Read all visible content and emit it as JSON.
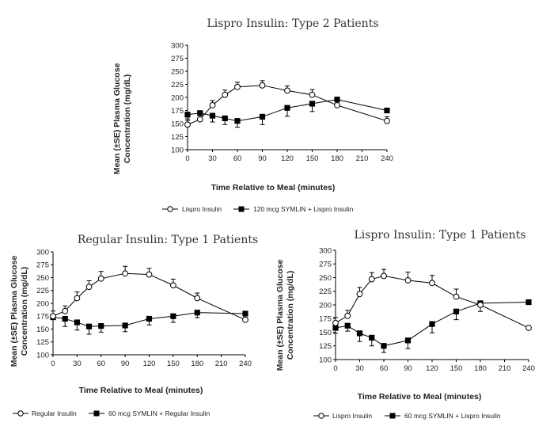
{
  "chart_data": [
    {
      "type": "line",
      "title": "Lispro Insulin:  Type 2 Patients",
      "xlabel": "Time Relative to Meal (minutes)",
      "ylabel_lines": [
        "Mean (±SE) Plasma Glucose",
        "Concentration (mg/dL)"
      ],
      "xlim": [
        0,
        240
      ],
      "ylim": [
        100,
        300
      ],
      "xticks": [
        0,
        30,
        60,
        90,
        120,
        150,
        180,
        210,
        240
      ],
      "yticks": [
        100,
        125,
        150,
        175,
        200,
        225,
        250,
        275,
        300
      ],
      "series": [
        {
          "name": "Lispro Insulin",
          "marker": "open-circle",
          "x": [
            0,
            15,
            30,
            45,
            60,
            90,
            120,
            150,
            180,
            240
          ],
          "values": [
            148,
            158,
            185,
            205,
            220,
            223,
            213,
            205,
            185,
            155
          ],
          "err": [
            8,
            8,
            9,
            9,
            9,
            9,
            9,
            10,
            0,
            8
          ],
          "err_dir": 1
        },
        {
          "name": "120 mcg SYMLIN + Lispro Insulin",
          "marker": "filled-square",
          "x": [
            0,
            15,
            30,
            45,
            60,
            90,
            120,
            150,
            180,
            240
          ],
          "values": [
            167,
            170,
            165,
            160,
            155,
            163,
            180,
            188,
            196,
            175
          ],
          "err": [
            8,
            10,
            12,
            12,
            12,
            15,
            16,
            15,
            10,
            0
          ],
          "err_dir": -1
        }
      ]
    },
    {
      "type": "line",
      "title": "Regular Insulin:  Type 1 Patients",
      "xlabel": "Time Relative to Meal (minutes)",
      "ylabel_lines": [
        "Mean (±SE) Plasma Glucose",
        "Concentration (mg/dL)"
      ],
      "xlim": [
        0,
        240
      ],
      "ylim": [
        100,
        300
      ],
      "xticks": [
        0,
        30,
        60,
        90,
        120,
        150,
        180,
        210,
        240
      ],
      "yticks": [
        100,
        125,
        150,
        175,
        200,
        225,
        250,
        275,
        300
      ],
      "series": [
        {
          "name": "Regular Insulin",
          "marker": "open-circle",
          "x": [
            0,
            15,
            30,
            45,
            60,
            90,
            120,
            150,
            180,
            240
          ],
          "values": [
            175,
            185,
            210,
            232,
            248,
            258,
            256,
            235,
            210,
            168
          ],
          "err": [
            10,
            10,
            12,
            12,
            14,
            14,
            12,
            12,
            10,
            0
          ],
          "err_dir": 1
        },
        {
          "name": "60 mcg SYMLIN + Regular Insulin",
          "marker": "filled-square",
          "x": [
            0,
            15,
            30,
            45,
            60,
            90,
            120,
            150,
            180,
            240
          ],
          "values": [
            173,
            170,
            163,
            155,
            156,
            157,
            170,
            175,
            182,
            180
          ],
          "err": [
            0,
            15,
            15,
            15,
            12,
            12,
            12,
            12,
            10,
            8
          ],
          "err_dir": -1
        }
      ]
    },
    {
      "type": "line",
      "title": "Lispro Insulin:  Type 1 Patients",
      "xlabel": "Time Relative to Meal (minutes)",
      "ylabel_lines": [
        "Mean (±SE) Plasma Glucose",
        "Concentration (mg/dL)"
      ],
      "xlim": [
        0,
        240
      ],
      "ylim": [
        100,
        300
      ],
      "xticks": [
        0,
        30,
        60,
        90,
        120,
        150,
        180,
        210,
        240
      ],
      "yticks": [
        100,
        125,
        150,
        175,
        200,
        225,
        250,
        275,
        300
      ],
      "series": [
        {
          "name": "Lispro Insulin",
          "marker": "open-circle",
          "x": [
            0,
            15,
            30,
            45,
            60,
            90,
            120,
            150,
            180,
            240
          ],
          "values": [
            167,
            180,
            220,
            247,
            253,
            245,
            240,
            215,
            200,
            158
          ],
          "err": [
            10,
            10,
            12,
            12,
            12,
            15,
            14,
            14,
            0,
            0
          ],
          "err_dir": 1
        },
        {
          "name": "60 mcg SYMLIN + Lispro Insulin",
          "marker": "filled-square",
          "x": [
            0,
            15,
            30,
            45,
            60,
            90,
            120,
            150,
            180,
            240
          ],
          "values": [
            158,
            162,
            148,
            140,
            125,
            135,
            165,
            188,
            203,
            205
          ],
          "err": [
            10,
            10,
            15,
            15,
            12,
            15,
            16,
            15,
            15,
            0
          ],
          "err_dir": -1
        }
      ]
    }
  ]
}
